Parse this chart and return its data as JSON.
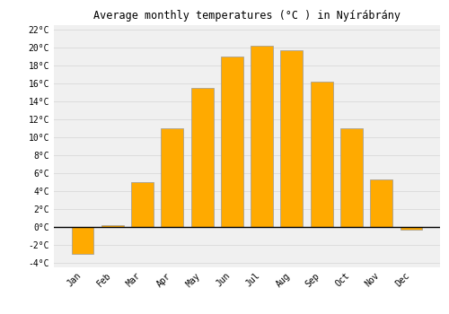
{
  "title": "Average monthly temperatures (°C ) in Nyírábrány",
  "months": [
    "Jan",
    "Feb",
    "Mar",
    "Apr",
    "May",
    "Jun",
    "Jul",
    "Aug",
    "Sep",
    "Oct",
    "Nov",
    "Dec"
  ],
  "values": [
    -3.0,
    0.2,
    5.0,
    11.0,
    15.5,
    19.0,
    20.2,
    19.7,
    16.2,
    11.0,
    5.3,
    -0.3
  ],
  "bar_color": "#FFAA00",
  "bar_edge_color": "#999999",
  "background_color": "#ffffff",
  "plot_bg_color": "#f0f0f0",
  "grid_color": "#dddddd",
  "ylim": [
    -4.5,
    22.5
  ],
  "yticks": [
    -4,
    -2,
    0,
    2,
    4,
    6,
    8,
    10,
    12,
    14,
    16,
    18,
    20,
    22
  ],
  "title_fontsize": 8.5,
  "tick_fontsize": 7,
  "zero_line_color": "#000000",
  "bar_width": 0.75
}
